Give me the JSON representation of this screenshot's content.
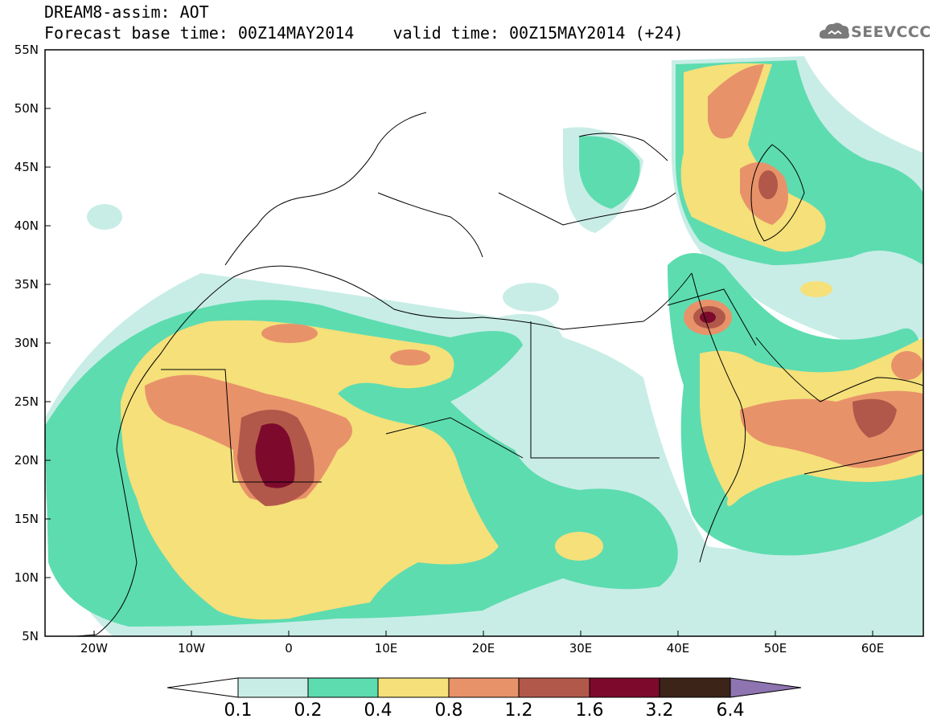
{
  "header": {
    "line1": "DREAM8-assim: AOT",
    "line2": "Forecast base time: 00Z14MAY2014    valid time: 00Z15MAY2014 (+24)"
  },
  "logo": {
    "text": "SEEVCCC",
    "icon": "cloud-icon"
  },
  "map": {
    "lon_range": [
      -25,
      65
    ],
    "lat_range": [
      5,
      55
    ],
    "lat_labels": [
      "5N",
      "10N",
      "15N",
      "20N",
      "25N",
      "30N",
      "35N",
      "40N",
      "45N",
      "50N",
      "55N"
    ],
    "lon_labels": [
      "20W",
      "10W",
      "0",
      "10E",
      "20E",
      "30E",
      "40E",
      "50E",
      "60E"
    ]
  },
  "colorbar": {
    "labels": [
      "0.1",
      "0.2",
      "0.4",
      "0.8",
      "1.2",
      "1.6",
      "3.2",
      "6.4"
    ],
    "colors": [
      "#ffffff",
      "#c8ede6",
      "#5ddcb0",
      "#f5e07a",
      "#e8926a",
      "#b2584a",
      "#7d0a2c",
      "#3c2418",
      "#8e74b0"
    ]
  }
}
